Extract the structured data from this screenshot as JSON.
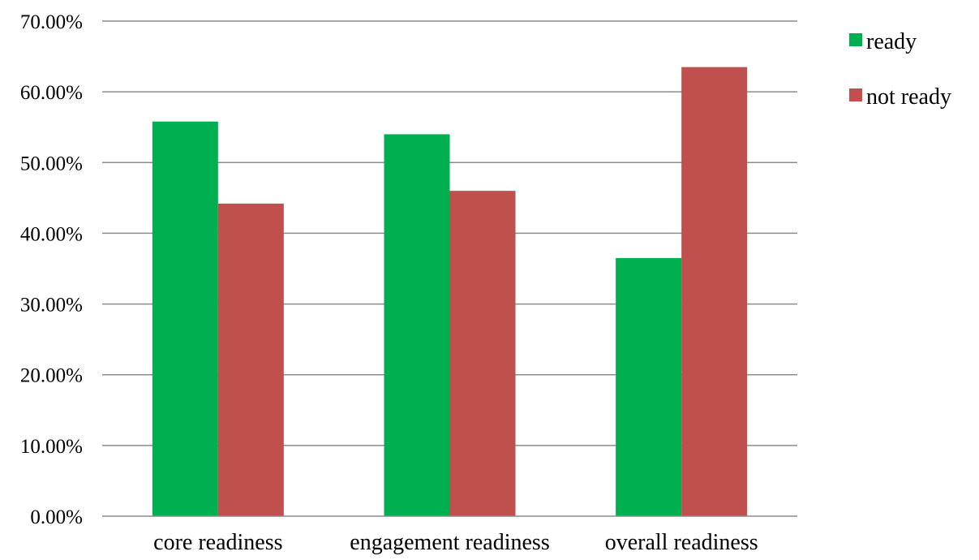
{
  "chart_data": {
    "type": "bar",
    "title": "",
    "xlabel": "",
    "ylabel": "",
    "categories": [
      "core readiness",
      "engagement readiness",
      "overall readiness"
    ],
    "series": [
      {
        "name": "ready",
        "values": [
          0.558,
          0.54,
          0.365
        ],
        "color": "#00b050"
      },
      {
        "name": "not ready",
        "values": [
          0.442,
          0.46,
          0.635
        ],
        "color": "#c0504d"
      }
    ],
    "ylim": [
      0,
      0.7
    ],
    "y_ticks": [
      {
        "value": 0.0,
        "label": "0.00%"
      },
      {
        "value": 0.1,
        "label": "10.00%"
      },
      {
        "value": 0.2,
        "label": "20.00%"
      },
      {
        "value": 0.3,
        "label": "30.00%"
      },
      {
        "value": 0.4,
        "label": "40.00%"
      },
      {
        "value": 0.5,
        "label": "50.00%"
      },
      {
        "value": 0.6,
        "label": "60.00%"
      },
      {
        "value": 0.7,
        "label": "70.00%"
      }
    ],
    "grid": true,
    "legend_position": "top-right"
  }
}
